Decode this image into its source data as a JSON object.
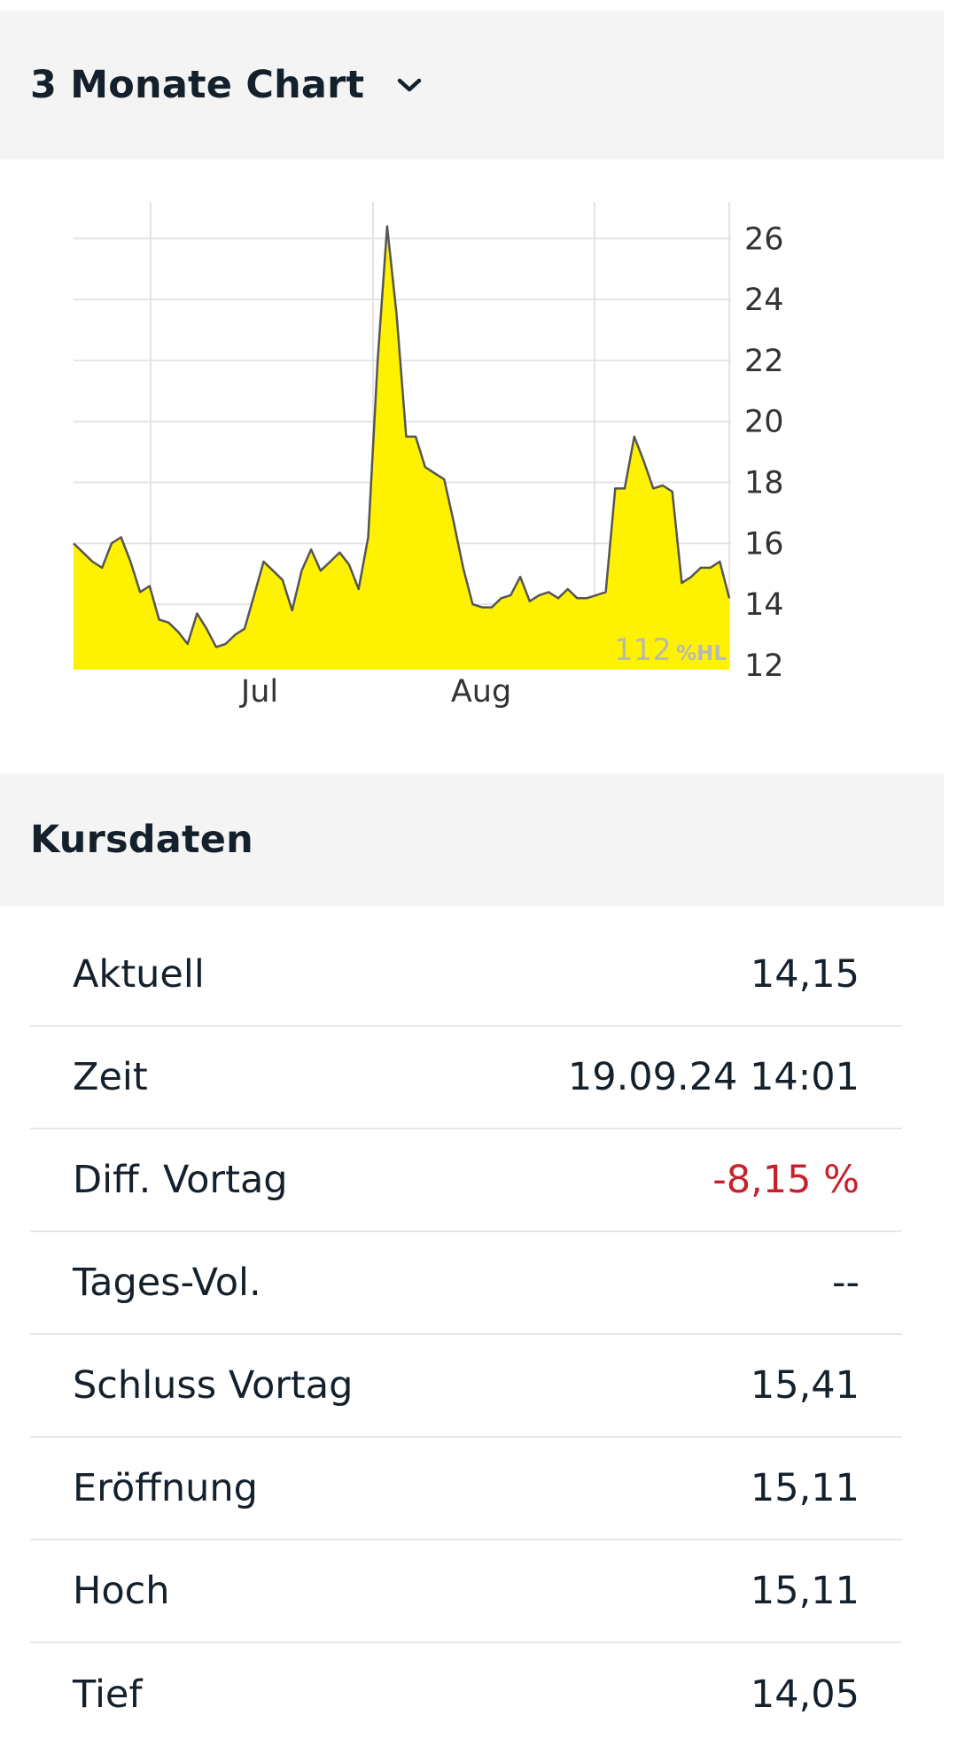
{
  "chart_section": {
    "title": "3 Monate Chart",
    "dropdown_icon": "chevron-down-icon"
  },
  "chart_data": {
    "type": "area",
    "x_labels": [
      "Jul",
      "Aug"
    ],
    "y_ticks": [
      12,
      14,
      16,
      18,
      20,
      22,
      24,
      26
    ],
    "ylim": [
      12,
      27.2
    ],
    "grid": true,
    "fill_color": "#fff200",
    "line_color": "#555555",
    "watermark": {
      "value": "112",
      "unit": "%HL"
    },
    "values": [
      16.0,
      15.7,
      15.4,
      15.2,
      16.0,
      16.2,
      15.4,
      14.4,
      14.6,
      13.5,
      13.4,
      13.1,
      12.7,
      13.7,
      13.2,
      12.6,
      12.7,
      13.0,
      13.2,
      14.3,
      15.4,
      15.1,
      14.8,
      13.8,
      15.1,
      15.8,
      15.1,
      15.4,
      15.7,
      15.3,
      14.5,
      16.2,
      22.0,
      26.4,
      23.5,
      19.5,
      19.5,
      18.5,
      18.3,
      18.1,
      16.7,
      15.2,
      14.0,
      13.9,
      13.9,
      14.2,
      14.3,
      14.9,
      14.1,
      14.3,
      14.4,
      14.2,
      14.5,
      14.2,
      14.2,
      14.3,
      14.4,
      17.8,
      17.8,
      19.5,
      18.7,
      17.8,
      17.9,
      17.7,
      14.7,
      14.9,
      15.2,
      15.2,
      15.4,
      14.2
    ],
    "series": [
      {
        "name": "",
        "values_ref": "values"
      }
    ]
  },
  "kursdaten": {
    "title": "Kursdaten",
    "rows": [
      {
        "label": "Aktuell",
        "value": "14,15"
      },
      {
        "label": "Zeit",
        "value": "19.09.24 14:01"
      },
      {
        "label": "Diff. Vortag",
        "value": "-8,15 %"
      },
      {
        "label": "Tages-Vol.",
        "value": "--"
      },
      {
        "label": "Schluss Vortag",
        "value": "15,41"
      },
      {
        "label": "Eröffnung",
        "value": "15,11"
      },
      {
        "label": "Hoch",
        "value": "15,11"
      },
      {
        "label": "Tief",
        "value": "14,05"
      }
    ],
    "negative_color": "#c8202d"
  }
}
